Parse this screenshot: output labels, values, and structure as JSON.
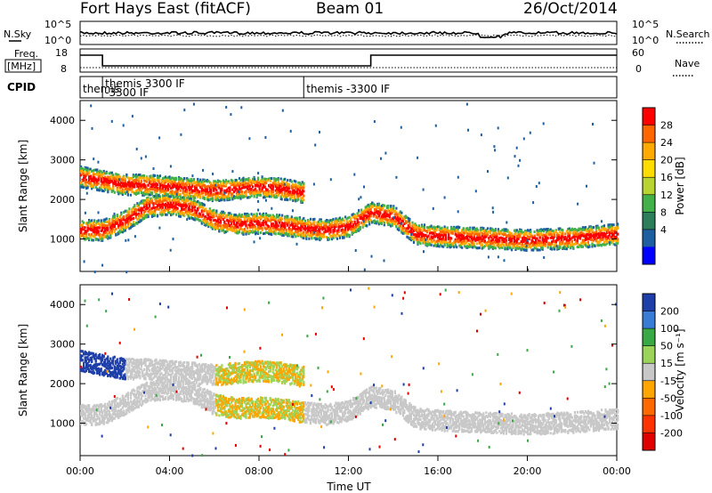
{
  "header": {
    "station": "Fort Hays East (fitACF)",
    "beam": "Beam 01",
    "date": "26/Oct/2014"
  },
  "top_panels": {
    "nsky_label": "N.Sky",
    "nsearch_label": "N.Search",
    "noise_ticks": [
      "10^5",
      "10^0"
    ],
    "freq_label_line1": "Freq.",
    "freq_label_line2": "[MHz]",
    "freq_ticks": [
      "18",
      "8"
    ],
    "nave_label": "Nave",
    "nave_ticks": [
      "60",
      "0"
    ],
    "cpid_label": "CPID",
    "cpid_segments": [
      {
        "line1": "themis",
        "line2": "",
        "start_hour": 0.0,
        "end_hour": 1.0
      },
      {
        "line1": "themis 3300 IF",
        "line2": "-3300 IF",
        "start_hour": 1.0,
        "end_hour": 10.0
      },
      {
        "line1": "themis -3300 IF",
        "line2": "",
        "start_hour": 10.0,
        "end_hour": 24.0
      }
    ]
  },
  "chart_data": [
    {
      "type": "heatmap",
      "title": "",
      "ylabel": "Slant Range [km]",
      "ylim": [
        180,
        4500
      ],
      "xlim": [
        0,
        24
      ],
      "y_ticks": [
        "1000",
        "2000",
        "3000",
        "4000"
      ],
      "colorbar_label": "Power [dB]",
      "colorbar_ticks": [
        "28",
        "24",
        "20",
        "16",
        "12",
        "8",
        "4"
      ],
      "colorbar_colors": [
        "#ff0000",
        "#ff6600",
        "#ffaa00",
        "#ffdd00",
        "#b8d430",
        "#44b04a",
        "#2e7d5b",
        "#1e5fa0",
        "#0000ff"
      ],
      "echo_bands": [
        {
          "name": "near",
          "points": [
            [
              0,
              1250
            ],
            [
              1,
              1250
            ],
            [
              2,
              1500
            ],
            [
              3,
              1850
            ],
            [
              4,
              1900
            ],
            [
              5,
              1800
            ],
            [
              6,
              1500
            ],
            [
              7,
              1400
            ],
            [
              8,
              1430
            ],
            [
              9,
              1380
            ],
            [
              10,
              1300
            ],
            [
              11,
              1250
            ],
            [
              12,
              1350
            ],
            [
              13,
              1700
            ],
            [
              14,
              1600
            ],
            [
              15,
              1150
            ],
            [
              16,
              1100
            ],
            [
              18,
              1050
            ],
            [
              20,
              1000
            ],
            [
              22,
              1050
            ],
            [
              24,
              1150
            ]
          ]
        },
        {
          "name": "far",
          "points": [
            [
              0,
              2600
            ],
            [
              1,
              2500
            ],
            [
              2,
              2400
            ],
            [
              3,
              2400
            ],
            [
              4,
              2350
            ],
            [
              5,
              2300
            ],
            [
              6,
              2250
            ],
            [
              7,
              2300
            ],
            [
              8,
              2350
            ],
            [
              9,
              2300
            ],
            [
              10,
              2200
            ]
          ]
        }
      ]
    },
    {
      "type": "heatmap",
      "title": "",
      "ylabel": "Slant Range [km]",
      "ylim": [
        180,
        4500
      ],
      "xlim": [
        0,
        24
      ],
      "y_ticks": [
        "1000",
        "2000",
        "3000",
        "4000"
      ],
      "colorbar_label": "Velocity [m s⁻¹]",
      "colorbar_ticks": [
        "200",
        "100",
        "50",
        "15",
        "-15",
        "-50",
        "-100",
        "-200"
      ],
      "colorbar_colors": [
        "#1e3ea8",
        "#3a7bd5",
        "#3aa845",
        "#9bd45a",
        "#c8c8c8",
        "#ffa500",
        "#ff6a00",
        "#ff3300",
        "#e00000"
      ],
      "x_ticks": [
        "00:00",
        "04:00",
        "08:00",
        "12:00",
        "16:00",
        "20:00",
        "00:00"
      ],
      "xlabel": "Time UT"
    }
  ]
}
